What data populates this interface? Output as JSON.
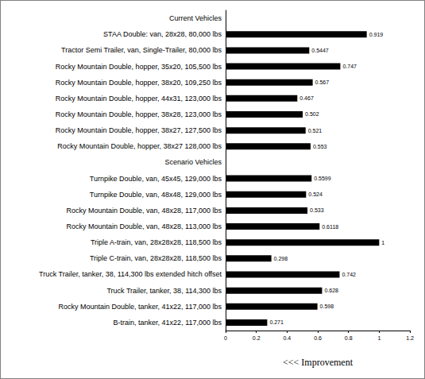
{
  "chart_data": {
    "type": "bar",
    "orientation": "horizontal",
    "categories": [
      "Current Vehicles",
      "STAA Double: van, 28x28, 80,000 lbs",
      "Tractor Semi Trailer, van, Single-Trailer, 80,000 lbs",
      "Rocky Mountain Double, hopper, 35x20, 105,500 lbs",
      "Rocky Mountain Double, hopper, 38x20, 109,250 lbs",
      "Rocky Mountain Double, hopper, 44x31, 123,000 lbs",
      "Rocky Mountain Double, hopper, 38x28, 123,000 lbs",
      "Rocky Mountain Double, hopper, 38x27, 127,500 lbs",
      "Rocky Mountain Double, hopper, 38x27 128,000 lbs",
      "Scenario Vehicles",
      "Turnpike Double, van, 45x45, 129,000 lbs",
      "Turnpike Double, van, 48x48, 129,000 lbs",
      "Rocky Mountain Double, van, 48x28, 117,000 lbs",
      "Rocky Mountain Double, van, 48x28, 113,000 lbs",
      "Triple A-train, van, 28x28x28, 118,500 lbs",
      "Triple C-train, van, 28x28x28, 118,500 lbs",
      "Truck Trailer, tanker, 38, 114,300 lbs extended hitch offset",
      "Truck Trailer, tanker, 38, 114,300 lbs",
      "Rocky Mountain Double, tanker, 41x22, 117,000 lbs",
      "B-train, tanker, 41x22, 117,000 lbs"
    ],
    "values": [
      null,
      0.919,
      0.5447,
      0.747,
      0.567,
      0.467,
      0.502,
      0.521,
      0.553,
      null,
      0.5599,
      0.524,
      0.533,
      0.6118,
      1,
      0.298,
      0.742,
      0.628,
      0.598,
      0.271
    ],
    "color": "#000000",
    "xlabel": "<<< Improvement",
    "xlim": [
      0,
      1.2
    ],
    "xticks": [
      0,
      0.2,
      0.4,
      0.6,
      0.8,
      1,
      1.2
    ],
    "data_labels": true,
    "grid": false
  }
}
